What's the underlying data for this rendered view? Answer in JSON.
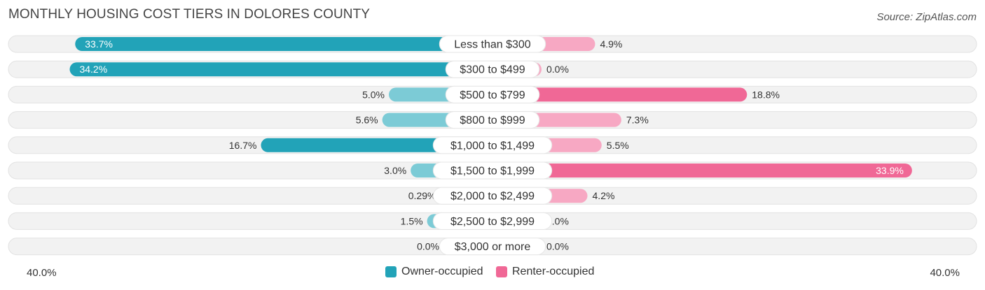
{
  "title": "MONTHLY HOUSING COST TIERS IN DOLORES COUNTY",
  "source": "Source: ZipAtlas.com",
  "colors": {
    "owner_strong": "#22a3b8",
    "owner_light": "#7ccbd6",
    "renter_strong": "#f06896",
    "renter_light": "#f7a8c3",
    "track": "#efefef"
  },
  "chart_data": {
    "type": "bar",
    "orientation": "horizontal-diverging",
    "categories": [
      "Less than $300",
      "$300 to $499",
      "$500 to $799",
      "$800 to $999",
      "$1,000 to $1,499",
      "$1,500 to $1,999",
      "$2,000 to $2,499",
      "$2,500 to $2,999",
      "$3,000 or more"
    ],
    "series": [
      {
        "name": "Owner-occupied",
        "values": [
          33.7,
          34.2,
          5.0,
          5.6,
          16.7,
          3.0,
          0.29,
          1.5,
          0.0
        ],
        "labels": [
          "33.7%",
          "34.2%",
          "5.0%",
          "5.6%",
          "16.7%",
          "3.0%",
          "0.29%",
          "1.5%",
          "0.0%"
        ]
      },
      {
        "name": "Renter-occupied",
        "values": [
          4.9,
          0.0,
          18.8,
          7.3,
          5.5,
          33.9,
          4.2,
          0.0,
          0.0
        ],
        "labels": [
          "4.9%",
          "0.0%",
          "18.8%",
          "7.3%",
          "5.5%",
          "33.9%",
          "4.2%",
          "0.0%",
          "0.0%"
        ]
      }
    ],
    "xlim": [
      -40,
      40
    ],
    "axis_left_label": "40.0%",
    "axis_right_label": "40.0%",
    "legend_position": "bottom-center"
  }
}
